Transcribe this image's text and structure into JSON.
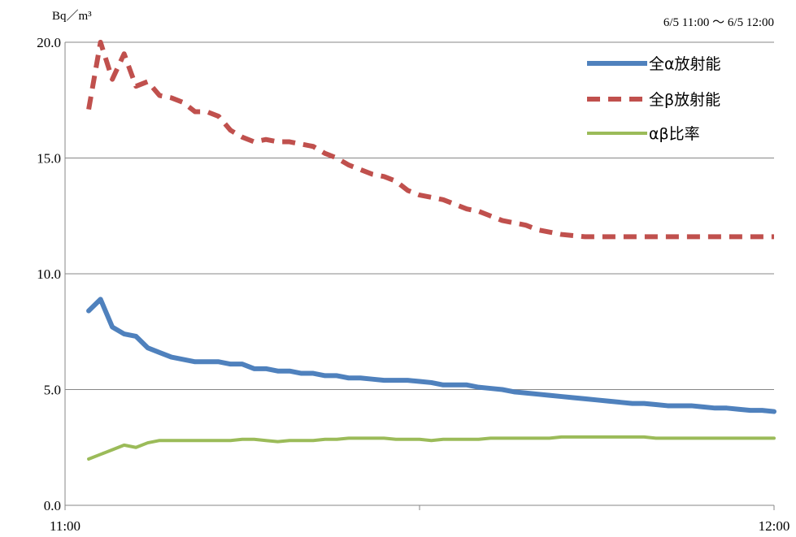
{
  "chart_data": {
    "type": "line",
    "ylabel": "Bq／m³",
    "time_range": "6/5 11:00 ～ 6/5 12:00",
    "ylim": [
      0,
      20
    ],
    "yticks": [
      "0.0",
      "5.0",
      "10.0",
      "15.0",
      "20.0"
    ],
    "xticks": [
      "11:00",
      "12:00"
    ],
    "grid": true,
    "legend_position": "top-right",
    "x": [
      "11:02",
      "11:03",
      "11:04",
      "11:05",
      "11:06",
      "11:07",
      "11:08",
      "11:09",
      "11:10",
      "11:11",
      "11:12",
      "11:13",
      "11:14",
      "11:15",
      "11:16",
      "11:17",
      "11:18",
      "11:19",
      "11:20",
      "11:21",
      "11:22",
      "11:23",
      "11:24",
      "11:25",
      "11:26",
      "11:27",
      "11:28",
      "11:29",
      "11:30",
      "11:31",
      "11:32",
      "11:33",
      "11:34",
      "11:35",
      "11:36",
      "11:37",
      "11:38",
      "11:39",
      "11:40",
      "11:41",
      "11:42",
      "11:43",
      "11:44",
      "11:45",
      "11:46",
      "11:47",
      "11:48",
      "11:49",
      "11:50",
      "11:51",
      "11:52",
      "11:53",
      "11:54",
      "11:55",
      "11:56",
      "11:57",
      "11:58",
      "11:59",
      "12:00"
    ],
    "series": [
      {
        "name": "全α放射能",
        "color": "#4F81BD",
        "dash": "solid",
        "values": [
          8.4,
          8.9,
          7.7,
          7.4,
          7.3,
          6.8,
          6.6,
          6.4,
          6.3,
          6.2,
          6.2,
          6.2,
          6.1,
          6.1,
          5.9,
          5.9,
          5.8,
          5.8,
          5.7,
          5.7,
          5.6,
          5.6,
          5.5,
          5.5,
          5.45,
          5.4,
          5.4,
          5.4,
          5.35,
          5.3,
          5.2,
          5.2,
          5.2,
          5.1,
          5.05,
          5.0,
          4.9,
          4.85,
          4.8,
          4.75,
          4.7,
          4.65,
          4.6,
          4.55,
          4.5,
          4.45,
          4.4,
          4.4,
          4.35,
          4.3,
          4.3,
          4.3,
          4.25,
          4.2,
          4.2,
          4.15,
          4.1,
          4.1,
          4.05
        ]
      },
      {
        "name": "全β放射能",
        "color": "#C0504D",
        "dash": "dashed",
        "values": [
          17.1,
          20.0,
          18.4,
          19.5,
          18.1,
          18.3,
          17.7,
          17.6,
          17.4,
          17.0,
          17.0,
          16.8,
          16.2,
          15.9,
          15.7,
          15.8,
          15.7,
          15.7,
          15.6,
          15.5,
          15.2,
          15.0,
          14.7,
          14.5,
          14.3,
          14.2,
          14.0,
          13.6,
          13.4,
          13.3,
          13.2,
          13.0,
          12.8,
          12.7,
          12.5,
          12.3,
          12.2,
          12.1,
          11.9,
          11.8,
          11.7,
          11.65,
          11.6,
          11.6,
          11.6,
          11.6,
          11.6,
          11.6,
          11.6,
          11.6,
          11.6,
          11.6,
          11.6,
          11.6,
          11.6,
          11.6,
          11.6,
          11.6,
          11.6
        ]
      },
      {
        "name": "αβ比率",
        "color": "#9BBB59",
        "dash": "solid",
        "values": [
          2.0,
          2.2,
          2.4,
          2.6,
          2.5,
          2.7,
          2.8,
          2.8,
          2.8,
          2.8,
          2.8,
          2.8,
          2.8,
          2.85,
          2.85,
          2.8,
          2.75,
          2.8,
          2.8,
          2.8,
          2.85,
          2.85,
          2.9,
          2.9,
          2.9,
          2.9,
          2.85,
          2.85,
          2.85,
          2.8,
          2.85,
          2.85,
          2.85,
          2.85,
          2.9,
          2.9,
          2.9,
          2.9,
          2.9,
          2.9,
          2.95,
          2.95,
          2.95,
          2.95,
          2.95,
          2.95,
          2.95,
          2.95,
          2.9,
          2.9,
          2.9,
          2.9,
          2.9,
          2.9,
          2.9,
          2.9,
          2.9,
          2.9,
          2.9
        ]
      }
    ]
  }
}
